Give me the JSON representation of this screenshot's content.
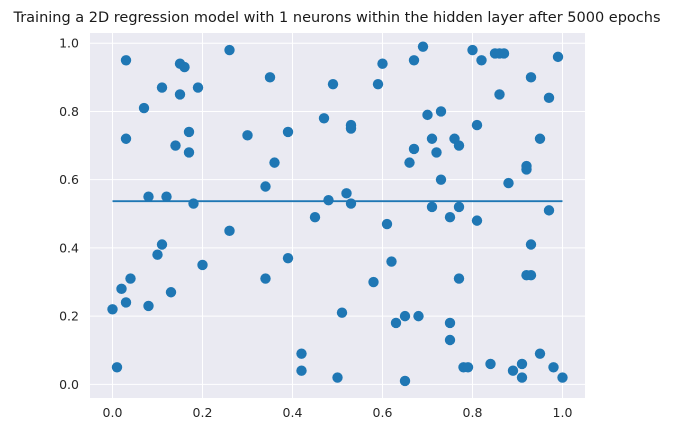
{
  "chart_data": {
    "type": "scatter",
    "title": "Training a 2D regression model with 1 neurons within the hidden layer after 5000 epochs",
    "xlabel": "",
    "ylabel": "",
    "xlim": [
      -0.05,
      1.05
    ],
    "ylim": [
      -0.04,
      1.03
    ],
    "xticks": [
      0.0,
      0.2,
      0.4,
      0.6,
      0.8,
      1.0
    ],
    "xtick_labels": [
      "0.0",
      "0.2",
      "0.4",
      "0.6",
      "0.8",
      "1.0"
    ],
    "yticks": [
      0.0,
      0.2,
      0.4,
      0.6,
      0.8,
      1.0
    ],
    "ytick_labels": [
      "0.0",
      "0.2",
      "0.4",
      "0.6",
      "0.8",
      "1.0"
    ],
    "grid": true,
    "color": "#1f77b4",
    "background": "#eaeaf2",
    "points": [
      [
        0.0,
        0.22
      ],
      [
        0.01,
        0.05
      ],
      [
        0.03,
        0.95
      ],
      [
        0.03,
        0.72
      ],
      [
        0.02,
        0.28
      ],
      [
        0.03,
        0.24
      ],
      [
        0.04,
        0.31
      ],
      [
        0.07,
        0.81
      ],
      [
        0.08,
        0.55
      ],
      [
        0.08,
        0.23
      ],
      [
        0.1,
        0.38
      ],
      [
        0.11,
        0.41
      ],
      [
        0.11,
        0.87
      ],
      [
        0.12,
        0.55
      ],
      [
        0.13,
        0.27
      ],
      [
        0.14,
        0.7
      ],
      [
        0.15,
        0.94
      ],
      [
        0.16,
        0.93
      ],
      [
        0.15,
        0.85
      ],
      [
        0.17,
        0.74
      ],
      [
        0.17,
        0.68
      ],
      [
        0.18,
        0.53
      ],
      [
        0.19,
        0.87
      ],
      [
        0.2,
        0.35
      ],
      [
        0.26,
        0.98
      ],
      [
        0.26,
        0.45
      ],
      [
        0.3,
        0.73
      ],
      [
        0.34,
        0.58
      ],
      [
        0.35,
        0.9
      ],
      [
        0.36,
        0.65
      ],
      [
        0.34,
        0.31
      ],
      [
        0.39,
        0.74
      ],
      [
        0.39,
        0.37
      ],
      [
        0.42,
        0.09
      ],
      [
        0.42,
        0.04
      ],
      [
        0.45,
        0.49
      ],
      [
        0.47,
        0.78
      ],
      [
        0.48,
        0.54
      ],
      [
        0.49,
        0.88
      ],
      [
        0.5,
        0.02
      ],
      [
        0.51,
        0.21
      ],
      [
        0.52,
        0.56
      ],
      [
        0.53,
        0.76
      ],
      [
        0.53,
        0.75
      ],
      [
        0.53,
        0.53
      ],
      [
        0.58,
        0.3
      ],
      [
        0.59,
        0.88
      ],
      [
        0.6,
        0.94
      ],
      [
        0.61,
        0.47
      ],
      [
        0.62,
        0.36
      ],
      [
        0.63,
        0.18
      ],
      [
        0.65,
        0.2
      ],
      [
        0.65,
        0.01
      ],
      [
        0.66,
        0.65
      ],
      [
        0.67,
        0.95
      ],
      [
        0.67,
        0.69
      ],
      [
        0.68,
        0.2
      ],
      [
        0.69,
        0.99
      ],
      [
        0.7,
        0.79
      ],
      [
        0.71,
        0.72
      ],
      [
        0.71,
        0.52
      ],
      [
        0.72,
        0.68
      ],
      [
        0.73,
        0.8
      ],
      [
        0.73,
        0.6
      ],
      [
        0.75,
        0.18
      ],
      [
        0.75,
        0.13
      ],
      [
        0.75,
        0.49
      ],
      [
        0.76,
        0.72
      ],
      [
        0.77,
        0.7
      ],
      [
        0.77,
        0.52
      ],
      [
        0.77,
        0.31
      ],
      [
        0.78,
        0.05
      ],
      [
        0.79,
        0.05
      ],
      [
        0.8,
        0.98
      ],
      [
        0.81,
        0.76
      ],
      [
        0.81,
        0.48
      ],
      [
        0.82,
        0.95
      ],
      [
        0.84,
        0.06
      ],
      [
        0.85,
        0.97
      ],
      [
        0.86,
        0.85
      ],
      [
        0.86,
        0.97
      ],
      [
        0.87,
        0.97
      ],
      [
        0.88,
        0.59
      ],
      [
        0.89,
        0.04
      ],
      [
        0.91,
        0.06
      ],
      [
        0.91,
        0.02
      ],
      [
        0.92,
        0.32
      ],
      [
        0.92,
        0.63
      ],
      [
        0.92,
        0.64
      ],
      [
        0.93,
        0.32
      ],
      [
        0.93,
        0.41
      ],
      [
        0.93,
        0.9
      ],
      [
        0.95,
        0.72
      ],
      [
        0.95,
        0.09
      ],
      [
        0.97,
        0.84
      ],
      [
        0.97,
        0.51
      ],
      [
        0.98,
        0.05
      ],
      [
        0.99,
        0.96
      ],
      [
        1.0,
        0.02
      ]
    ],
    "line": {
      "x": [
        0.0,
        1.0
      ],
      "y": [
        0.537,
        0.537
      ]
    }
  }
}
